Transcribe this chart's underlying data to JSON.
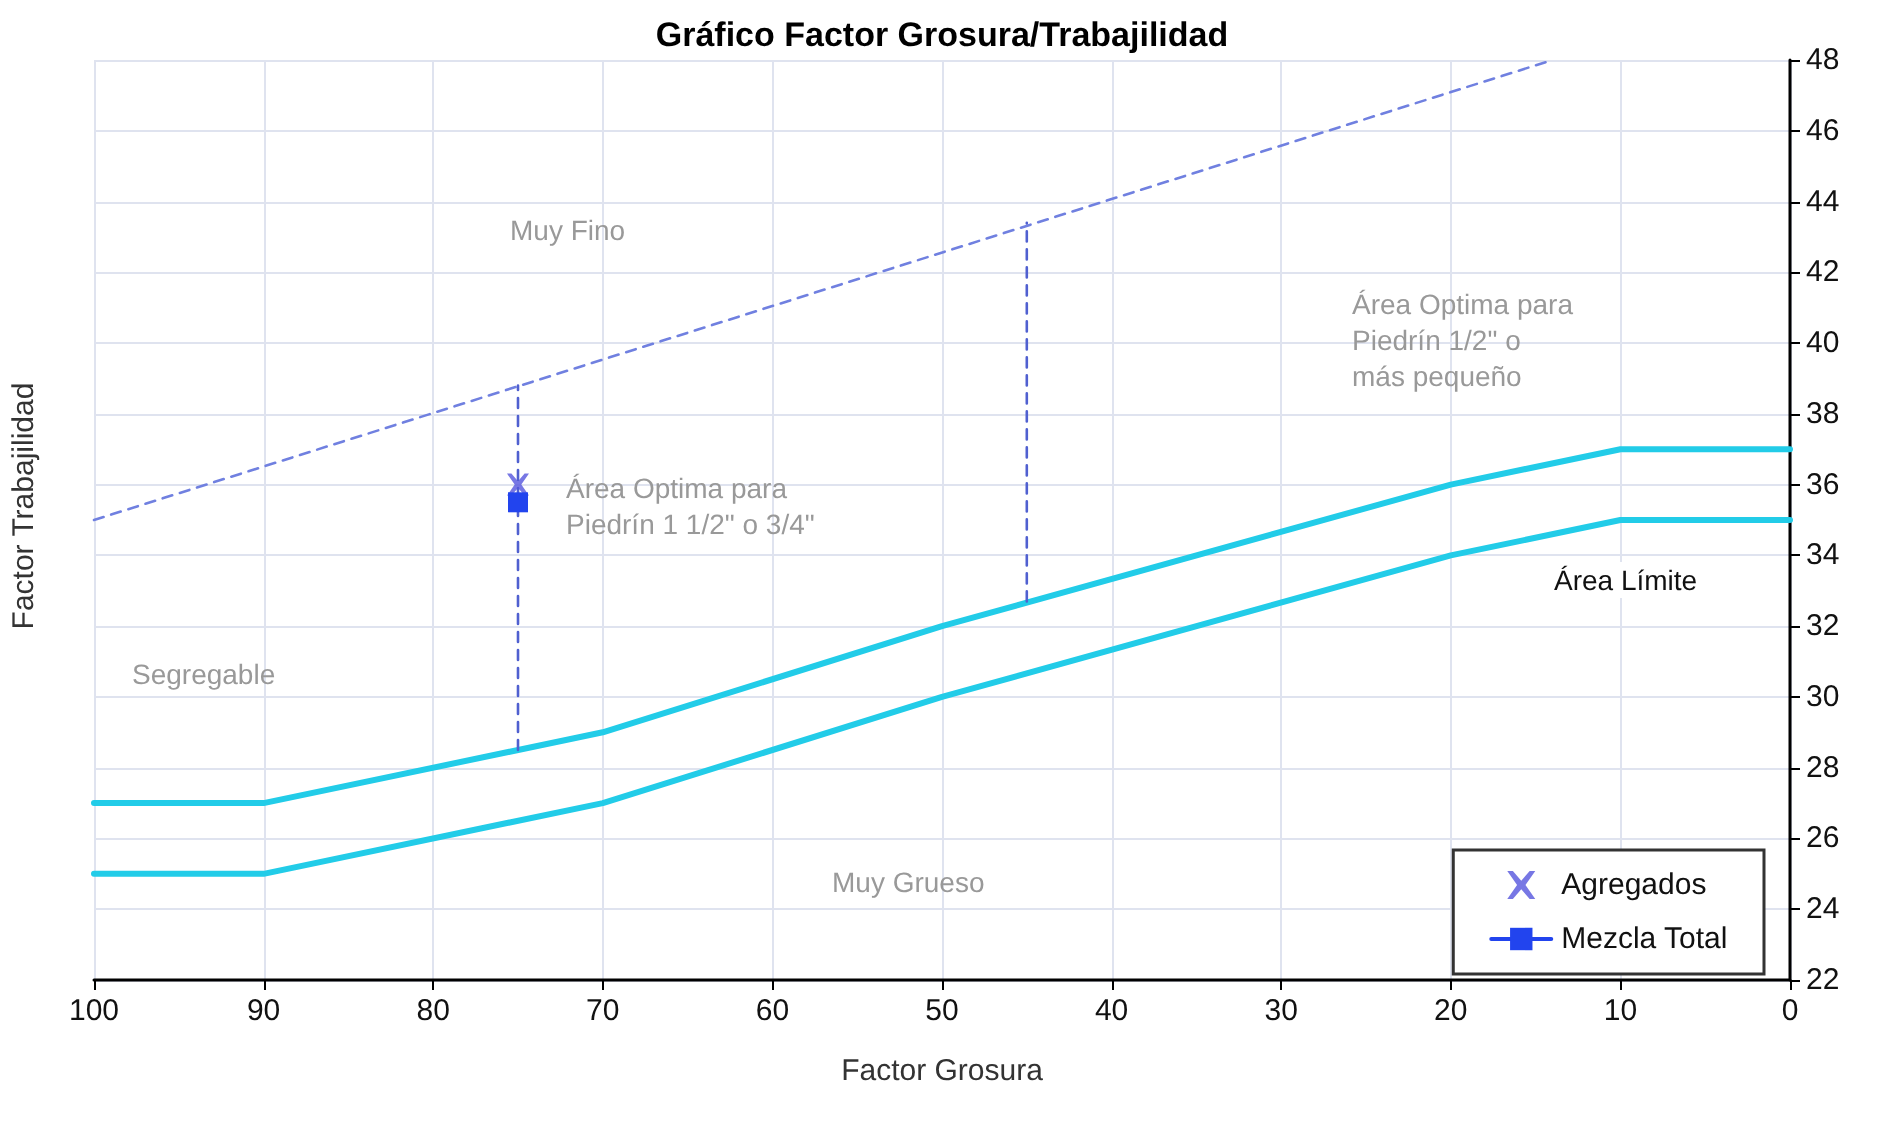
{
  "chart_data": {
    "type": "line",
    "title": "Gráfico Factor Grosura/Trabajilidad",
    "xlabel": "Factor Grosura",
    "ylabel": "Factor Trabajilidad",
    "xlim": [
      100,
      0
    ],
    "xticks": [
      100,
      90,
      80,
      70,
      60,
      50,
      40,
      30,
      20,
      10,
      0
    ],
    "ylim": [
      22,
      48
    ],
    "yticks": [
      22,
      24,
      26,
      28,
      30,
      32,
      34,
      36,
      38,
      40,
      42,
      44,
      46,
      48
    ],
    "grid": true,
    "legend": "bottom right",
    "marker": "none",
    "line_style": "solid",
    "series": [
      {
        "color": "#22cce8",
        "x": [
          100,
          90,
          70,
          50,
          20,
          10,
          0
        ],
        "values": [
          27,
          27,
          29,
          32,
          36,
          37,
          37
        ]
      },
      {
        "color": "#22cce8",
        "x": [
          100,
          90,
          70,
          50,
          20,
          10,
          0
        ],
        "values": [
          25,
          25,
          27,
          30,
          34,
          35,
          35
        ]
      },
      {
        "color": "#7080e0",
        "line_style": "dashed",
        "x": [
          100,
          14
        ],
        "values": [
          35,
          48
        ]
      },
      {
        "color": "#5060d0",
        "line_style": "dashed",
        "x": [
          75,
          75
        ],
        "values": [
          28.5,
          38.8
        ]
      },
      {
        "color": "#5060d0",
        "line_style": "dashed",
        "x": [
          45,
          45
        ],
        "values": [
          32.7,
          43.4
        ]
      },
      {
        "name": "Agregados",
        "type": "scatter",
        "marker": "cross",
        "color": "#5555dd",
        "x": [
          75
        ],
        "values": [
          36
        ]
      },
      {
        "name": "Mezcla Total",
        "marker": "square",
        "color": "#2244ee",
        "x": [
          75
        ],
        "values": [
          35.5
        ]
      }
    ],
    "annotations": [
      "Muy Fino",
      "Área Optima para\nPiedrín 1 1/2\" o 3/4\"",
      "Área Optima para\nPiedrín 1/2\" o\nmás pequeño",
      "Segregable",
      "Muy Grueso",
      "Área Límite"
    ]
  }
}
